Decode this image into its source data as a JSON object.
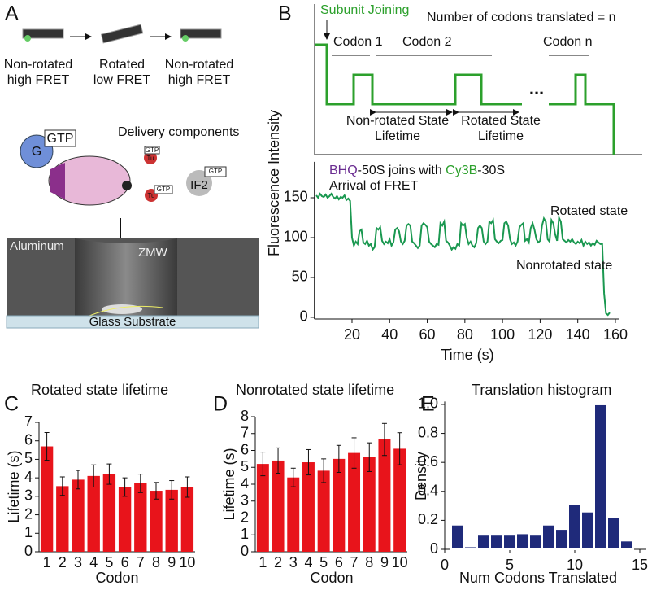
{
  "figure": {
    "panel_a": {
      "label": "A",
      "states": [
        [
          "Non-rotated",
          "high FRET"
        ],
        [
          "Rotated",
          "low FRET"
        ],
        [
          "Non-rotated",
          "high FRET"
        ]
      ],
      "g": "G",
      "gtp": "GTP",
      "delivery": "Delivery components",
      "tu": "Tu",
      "if2": "IF2",
      "aluminum": "Aluminum",
      "zmw": "ZMW",
      "glass": "Glass Substrate"
    },
    "panel_b_schematic": {
      "label": "B",
      "subunit_joining": "Subunit Joining",
      "codons_note": "Number of codons translated = n",
      "codon_labels": [
        "Codon 1",
        "Codon 2",
        "Codon n"
      ],
      "ellipsis": "...",
      "nonrotated_lifetime": [
        "Non-rotated State",
        "Lifetime"
      ],
      "rotated_lifetime": [
        "Rotated State",
        "Lifetime"
      ]
    }
  },
  "chart_data": [
    {
      "type": "line",
      "y_label": "Fluorescence Intensity",
      "x_label": "Time (s)",
      "annotation": [
        "BHQ",
        "-50S joins with ",
        "Cy3B",
        "-30S"
      ],
      "arrival": "Arrival of FRET",
      "state_labels": [
        "Rotated state",
        "Nonrotated state"
      ],
      "color": "#1a9850",
      "x": [
        1,
        2,
        3,
        4,
        5,
        6,
        7,
        8,
        9,
        10,
        11,
        12,
        13,
        14,
        15,
        16,
        17,
        18,
        19,
        20,
        21,
        22,
        23,
        24,
        25,
        26,
        27,
        28,
        29,
        30,
        31,
        32,
        33,
        34,
        35,
        36,
        37,
        38,
        39,
        40,
        41,
        42,
        43,
        44,
        45,
        46,
        47,
        48,
        49,
        50,
        51,
        52,
        53,
        54,
        55,
        56,
        57,
        58,
        59,
        60,
        61,
        62,
        63,
        64,
        65,
        66,
        67,
        68,
        69,
        70,
        71,
        72,
        73,
        74,
        75,
        76,
        77,
        78,
        79,
        80,
        81,
        82,
        83,
        84,
        85,
        86,
        87,
        88,
        89,
        90,
        91,
        92,
        93,
        94,
        95,
        96,
        97,
        98,
        99,
        100,
        101,
        102,
        103,
        104,
        105,
        106,
        107,
        108,
        109,
        110,
        111,
        112,
        113,
        114,
        115,
        116,
        117,
        118,
        119,
        120,
        121,
        122,
        123,
        124,
        125,
        126,
        127,
        128,
        129,
        130,
        131,
        132,
        133,
        134,
        135,
        136,
        137,
        138,
        139,
        140,
        141,
        142,
        143,
        144,
        145,
        146,
        147,
        148,
        149,
        150,
        151,
        152,
        153,
        154,
        155,
        156,
        157
      ],
      "values": [
        153,
        150,
        155,
        152,
        151,
        154,
        150,
        152,
        155,
        151,
        149,
        152,
        148,
        151,
        150,
        153,
        147,
        149,
        146,
        100,
        90,
        95,
        92,
        108,
        110,
        94,
        92,
        96,
        90,
        92,
        85,
        88,
        112,
        110,
        113,
        96,
        92,
        95,
        93,
        98,
        90,
        94,
        110,
        112,
        108,
        95,
        92,
        96,
        115,
        117,
        115,
        95,
        93,
        90,
        87,
        90,
        115,
        118,
        116,
        113,
        95,
        92,
        90,
        88,
        92,
        91,
        118,
        115,
        120,
        96,
        94,
        90,
        85,
        88,
        86,
        92,
        90,
        118,
        115,
        117,
        100,
        92,
        95,
        90,
        88,
        93,
        112,
        115,
        112,
        95,
        92,
        95,
        120,
        118,
        122,
        98,
        95,
        93,
        96,
        97,
        118,
        120,
        115,
        98,
        92,
        94,
        90,
        95,
        113,
        116,
        118,
        96,
        98,
        94,
        112,
        118,
        110,
        98,
        94,
        96,
        115,
        124,
        120,
        98,
        95,
        122,
        118,
        104,
        96,
        125,
        120,
        98,
        96,
        94,
        97,
        95,
        98,
        94,
        92,
        95,
        93,
        97,
        90,
        95,
        92,
        94,
        90,
        93,
        91,
        96,
        94,
        92,
        92,
        30,
        5,
        3,
        6
      ],
      "xlim": [
        0,
        162
      ],
      "xticks": [
        20,
        40,
        60,
        80,
        100,
        120,
        140,
        160
      ],
      "ylim": [
        -3,
        195
      ],
      "yticks": [
        0,
        50,
        100,
        150
      ]
    },
    {
      "type": "bar",
      "panel": "C",
      "title": "Rotated state lifetime",
      "x_label": "Codon",
      "y_label": "Lifetime (s)",
      "categories": [
        "1",
        "2",
        "3",
        "4",
        "5",
        "6",
        "7",
        "8",
        "9",
        "10"
      ],
      "values": [
        5.7,
        3.55,
        3.9,
        4.1,
        4.2,
        3.5,
        3.7,
        3.3,
        3.35,
        3.5
      ],
      "errors": [
        0.75,
        0.5,
        0.5,
        0.6,
        0.55,
        0.5,
        0.5,
        0.45,
        0.5,
        0.55
      ],
      "color": "#e8141b",
      "ylim": [
        0,
        7
      ],
      "yticks": [
        0,
        1,
        2,
        3,
        4,
        5,
        6,
        7
      ]
    },
    {
      "type": "bar",
      "panel": "D",
      "title": "Nonrotated state lifetime",
      "x_label": "Codon",
      "y_label": "Lifetime (s)",
      "categories": [
        "1",
        "2",
        "3",
        "4",
        "5",
        "6",
        "7",
        "8",
        "9",
        "10"
      ],
      "values": [
        5.2,
        5.4,
        4.4,
        5.3,
        4.8,
        5.5,
        5.85,
        5.6,
        6.65,
        6.1
      ],
      "errors": [
        0.7,
        0.75,
        0.55,
        0.75,
        0.7,
        0.8,
        0.9,
        0.85,
        0.95,
        0.95
      ],
      "color": "#e8141b",
      "ylim": [
        0,
        8
      ],
      "yticks": [
        0,
        1,
        2,
        3,
        4,
        5,
        6,
        7,
        8
      ]
    },
    {
      "type": "histogram",
      "panel": "E",
      "title": "Translation histogram",
      "x_label": "Num Codons Translated",
      "y_label": "Density",
      "bins": [
        0.5,
        1.5,
        2.5,
        3.5,
        4.5,
        5.5,
        6.5,
        7.5,
        8.5,
        9.5,
        10.5,
        11.5,
        12.5,
        13.5,
        14.5
      ],
      "values": [
        0.17,
        0.02,
        0.1,
        0.1,
        0.1,
        0.11,
        0.1,
        0.17,
        0.14,
        0.31,
        0.26,
        1.0,
        0.22,
        0.06
      ],
      "color": "#1f2a7a",
      "xlim": [
        0,
        15.5
      ],
      "xticks": [
        0,
        5,
        10,
        15
      ],
      "ylim": [
        0,
        1.02
      ],
      "yticks": [
        0,
        0.2,
        0.4,
        0.6,
        0.8,
        {
          "value": 1,
          "label": "1.0"
        }
      ]
    }
  ]
}
